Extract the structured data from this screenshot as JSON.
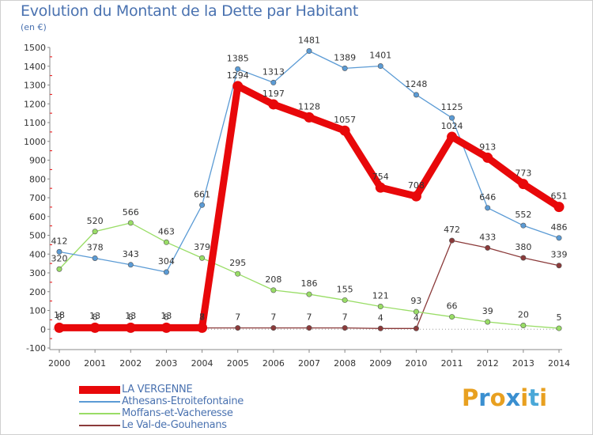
{
  "title": "Evolution du Montant de la Dette par Habitant",
  "unit_label": "(en €)",
  "logo": {
    "text": "Proxiti",
    "letters": [
      {
        "ch": "P",
        "color": "#e8a020"
      },
      {
        "ch": "r",
        "color": "#3a8fd0"
      },
      {
        "ch": "o",
        "color": "#e8a020"
      },
      {
        "ch": "x",
        "color": "#3a8fd0"
      },
      {
        "ch": "i",
        "color": "#e8a020"
      },
      {
        "ch": "t",
        "color": "#4aa8d8"
      },
      {
        "ch": "i",
        "color": "#e8a020"
      }
    ]
  },
  "chart_data": {
    "type": "line",
    "x": [
      "2000",
      "2001",
      "2002",
      "2003",
      "2004",
      "2005",
      "2006",
      "2007",
      "2008",
      "2009",
      "2010",
      "2011",
      "2012",
      "2013",
      "2014"
    ],
    "ylim": [
      -100,
      1500
    ],
    "yticks": [
      "-100",
      "0",
      "100",
      "200",
      "300",
      "400",
      "500",
      "600",
      "700",
      "800",
      "900",
      "1000",
      "1100",
      "1200",
      "1300",
      "1400",
      "1500"
    ],
    "grid": false,
    "legend_position": "bottom-left",
    "series": [
      {
        "name": "LA VERGENNE",
        "color": "#e8080a",
        "values": [
          8,
          8,
          8,
          8,
          8,
          1294,
          1197,
          1128,
          1057,
          754,
          708,
          1024,
          913,
          773,
          651
        ],
        "labels": [
          "8",
          "8",
          "8",
          "8",
          "8",
          "1294",
          "1197",
          "1128",
          "1057",
          "754",
          "708",
          "1024",
          "913",
          "773",
          "651"
        ]
      },
      {
        "name": "Athesans-Etroitefontaine",
        "color": "#5b9bd5",
        "values": [
          412,
          378,
          343,
          304,
          661,
          1385,
          1313,
          1481,
          1389,
          1401,
          1248,
          1125,
          646,
          552,
          486
        ],
        "labels": [
          "412",
          "378",
          "343",
          "304",
          "661",
          "1385",
          "1313",
          "1481",
          "1389",
          "1401",
          "1248",
          "1125",
          "646",
          "552",
          "486"
        ]
      },
      {
        "name": "Moffans-et-Vacheresse",
        "color": "#99dd66",
        "values": [
          320,
          520,
          566,
          463,
          379,
          295,
          208,
          186,
          155,
          121,
          93,
          66,
          39,
          20,
          5
        ],
        "labels": [
          "320",
          "520",
          "566",
          "463",
          "379",
          "295",
          "208",
          "186",
          "155",
          "121",
          "93",
          "66",
          "39",
          "20",
          "5"
        ]
      },
      {
        "name": "Le Val-de-Gouhenans",
        "color": "#8b3a3a",
        "values": [
          18,
          13,
          13,
          13,
          7,
          7,
          7,
          7,
          7,
          4,
          4,
          472,
          433,
          380,
          339
        ],
        "labels": [
          "18",
          "13",
          "13",
          "13",
          "7",
          "7",
          "7",
          "7",
          "7",
          "4",
          "4",
          "472",
          "433",
          "380",
          "339"
        ]
      }
    ]
  }
}
